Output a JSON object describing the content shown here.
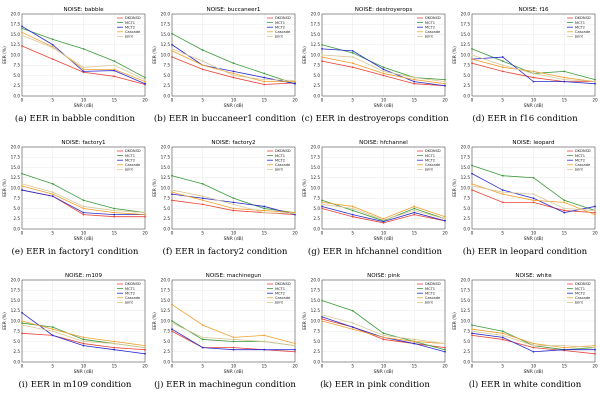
{
  "series_meta": [
    {
      "name": "DKDNSD",
      "color": "#e8443a"
    },
    {
      "name": "MCT1",
      "color": "#3a9a3a"
    },
    {
      "name": "MCT2",
      "color": "#2a2ad0"
    },
    {
      "name": "Cascade",
      "color": "#f0a030"
    },
    {
      "name": "Joint",
      "color": "#d8c898"
    }
  ],
  "chart_data": [
    {
      "type": "line",
      "title": "NOISE: babble",
      "caption": "(a) EER in babble condition",
      "xlabel": "SNR (dB)",
      "ylabel": "EER (%)",
      "x": [
        0,
        5,
        10,
        15,
        20
      ],
      "xticks": [
        0,
        5,
        10,
        15,
        20
      ],
      "yticks": [
        0.0,
        2.5,
        5.0,
        7.5,
        10.0,
        12.5,
        15.0,
        17.5,
        20.0
      ],
      "ylim": [
        0,
        20
      ],
      "series": [
        {
          "name": "DKDNSD",
          "values": [
            12.2,
            9.0,
            5.8,
            4.8,
            2.8
          ]
        },
        {
          "name": "MCT1",
          "values": [
            16.5,
            13.8,
            11.5,
            8.5,
            4.5
          ]
        },
        {
          "name": "MCT2",
          "values": [
            17.0,
            12.5,
            6.0,
            6.2,
            3.0
          ]
        },
        {
          "name": "Cascade",
          "values": [
            15.5,
            12.0,
            6.5,
            6.5,
            3.5
          ]
        },
        {
          "name": "Joint",
          "values": [
            14.8,
            11.8,
            7.0,
            7.5,
            4.0
          ]
        }
      ]
    },
    {
      "type": "line",
      "title": "NOISE: buccaneer1",
      "caption": "(b) EER in buccaneer1 condition",
      "xlabel": "SNR (dB)",
      "ylabel": "EER (%)",
      "x": [
        0,
        5,
        10,
        15,
        20
      ],
      "xticks": [
        0,
        5,
        10,
        15,
        20
      ],
      "yticks": [
        0.0,
        2.5,
        5.0,
        7.5,
        10.0,
        12.5,
        15.0,
        17.5,
        20.0
      ],
      "ylim": [
        0,
        20
      ],
      "series": [
        {
          "name": "DKDNSD",
          "values": [
            9.5,
            6.5,
            4.5,
            2.8,
            3.2
          ]
        },
        {
          "name": "MCT1",
          "values": [
            15.2,
            11.2,
            8.0,
            5.5,
            3.0
          ]
        },
        {
          "name": "MCT2",
          "values": [
            12.5,
            7.5,
            6.0,
            4.5,
            3.0
          ]
        },
        {
          "name": "Cascade",
          "values": [
            11.0,
            7.5,
            5.5,
            3.5,
            3.5
          ]
        },
        {
          "name": "Joint",
          "values": [
            11.5,
            8.5,
            5.0,
            4.0,
            3.8
          ]
        }
      ]
    },
    {
      "type": "line",
      "title": "NOISE: destroyerops",
      "caption": "(c) EER in destroyerops condition",
      "xlabel": "SNR (dB)",
      "ylabel": "EER (%)",
      "x": [
        0,
        5,
        10,
        15,
        20
      ],
      "xticks": [
        0,
        5,
        10,
        15,
        20
      ],
      "yticks": [
        0.0,
        2.5,
        5.0,
        7.5,
        10.0,
        12.5,
        15.0,
        17.5,
        20.0
      ],
      "ylim": [
        0,
        20
      ],
      "series": [
        {
          "name": "DKDNSD",
          "values": [
            8.5,
            7.0,
            5.0,
            3.0,
            2.5
          ]
        },
        {
          "name": "MCT1",
          "values": [
            12.5,
            10.5,
            7.0,
            4.5,
            4.0
          ]
        },
        {
          "name": "MCT2",
          "values": [
            11.5,
            11.0,
            6.5,
            3.5,
            2.5
          ]
        },
        {
          "name": "Cascade",
          "values": [
            9.5,
            8.0,
            5.5,
            4.0,
            3.0
          ]
        },
        {
          "name": "Joint",
          "values": [
            10.0,
            9.5,
            6.0,
            4.5,
            3.5
          ]
        }
      ]
    },
    {
      "type": "line",
      "title": "NOISE: f16",
      "caption": "(d) EER in f16 condition",
      "xlabel": "SNR (dB)",
      "ylabel": "EER (%)",
      "x": [
        0,
        5,
        10,
        15,
        20
      ],
      "xticks": [
        0,
        5,
        10,
        15,
        20
      ],
      "yticks": [
        0.0,
        2.5,
        5.0,
        7.5,
        10.0,
        12.5,
        15.0,
        17.5,
        20.0
      ],
      "ylim": [
        0,
        20
      ],
      "series": [
        {
          "name": "DKDNSD",
          "values": [
            8.0,
            6.0,
            4.5,
            3.5,
            3.5
          ]
        },
        {
          "name": "MCT1",
          "values": [
            11.5,
            8.5,
            5.5,
            6.0,
            4.0
          ]
        },
        {
          "name": "MCT2",
          "values": [
            9.0,
            9.5,
            3.5,
            3.5,
            3.0
          ]
        },
        {
          "name": "Cascade",
          "values": [
            9.0,
            7.0,
            6.0,
            4.5,
            3.5
          ]
        },
        {
          "name": "Joint",
          "values": [
            10.0,
            7.5,
            5.5,
            4.0,
            3.5
          ]
        }
      ]
    },
    {
      "type": "line",
      "title": "NOISE: factory1",
      "caption": "(e) EER in factory1 condition",
      "xlabel": "SNR (dB)",
      "ylabel": "EER (%)",
      "x": [
        0,
        5,
        10,
        15,
        20
      ],
      "xticks": [
        0,
        5,
        10,
        15,
        20
      ],
      "yticks": [
        0.0,
        2.5,
        5.0,
        7.5,
        10.0,
        12.5,
        15.0,
        17.5,
        20.0
      ],
      "ylim": [
        0,
        20
      ],
      "series": [
        {
          "name": "DKDNSD",
          "values": [
            9.5,
            8.0,
            3.5,
            3.0,
            3.0
          ]
        },
        {
          "name": "MCT1",
          "values": [
            13.5,
            11.0,
            7.0,
            5.0,
            4.0
          ]
        },
        {
          "name": "MCT2",
          "values": [
            9.5,
            8.0,
            4.0,
            3.5,
            3.5
          ]
        },
        {
          "name": "Cascade",
          "values": [
            10.5,
            8.5,
            5.0,
            4.0,
            3.5
          ]
        },
        {
          "name": "Joint",
          "values": [
            11.0,
            9.0,
            5.5,
            4.5,
            4.0
          ]
        }
      ]
    },
    {
      "type": "line",
      "title": "NOISE: factory2",
      "caption": "(f) EER in factory2 condition",
      "xlabel": "SNR (dB)",
      "ylabel": "EER (%)",
      "x": [
        0,
        5,
        10,
        15,
        20
      ],
      "xticks": [
        0,
        5,
        10,
        15,
        20
      ],
      "yticks": [
        0.0,
        2.5,
        5.0,
        7.5,
        10.0,
        12.5,
        15.0,
        17.5,
        20.0
      ],
      "ylim": [
        0,
        20
      ],
      "series": [
        {
          "name": "DKDNSD",
          "values": [
            7.0,
            6.0,
            4.5,
            4.0,
            3.5
          ]
        },
        {
          "name": "MCT1",
          "values": [
            13.0,
            11.0,
            7.5,
            5.0,
            4.0
          ]
        },
        {
          "name": "MCT2",
          "values": [
            8.5,
            7.5,
            6.5,
            5.5,
            3.5
          ]
        },
        {
          "name": "Cascade",
          "values": [
            9.0,
            7.0,
            5.0,
            4.5,
            4.0
          ]
        },
        {
          "name": "Joint",
          "values": [
            9.5,
            8.0,
            6.0,
            4.0,
            3.8
          ]
        }
      ]
    },
    {
      "type": "line",
      "title": "NOISE: hfchannel",
      "caption": "(g) EER in hfchannel condition",
      "xlabel": "SNR (dB)",
      "ylabel": "EER (%)",
      "x": [
        0,
        5,
        10,
        15,
        20
      ],
      "xticks": [
        0,
        5,
        10,
        15,
        20
      ],
      "yticks": [
        0.0,
        2.5,
        5.0,
        7.5,
        10.0,
        12.5,
        15.0,
        17.5,
        20.0
      ],
      "ylim": [
        0,
        20
      ],
      "series": [
        {
          "name": "DKDNSD",
          "values": [
            5.0,
            3.0,
            1.5,
            3.5,
            2.0
          ]
        },
        {
          "name": "MCT1",
          "values": [
            7.0,
            4.5,
            2.0,
            5.0,
            2.5
          ]
        },
        {
          "name": "MCT2",
          "values": [
            5.5,
            3.5,
            1.8,
            4.0,
            2.0
          ]
        },
        {
          "name": "Cascade",
          "values": [
            6.5,
            5.5,
            2.5,
            5.5,
            3.0
          ]
        },
        {
          "name": "Joint",
          "values": [
            6.0,
            5.0,
            2.2,
            4.5,
            2.5
          ]
        }
      ]
    },
    {
      "type": "line",
      "title": "NOISE: leopard",
      "caption": "(h) EER in leopard condition",
      "xlabel": "SNR (dB)",
      "ylabel": "EER (%)",
      "x": [
        0,
        5,
        10,
        15,
        20
      ],
      "xticks": [
        0,
        5,
        10,
        15,
        20
      ],
      "yticks": [
        0.0,
        2.5,
        5.0,
        7.5,
        10.0,
        12.5,
        15.0,
        17.5,
        20.0
      ],
      "ylim": [
        0,
        20
      ],
      "series": [
        {
          "name": "DKDNSD",
          "values": [
            9.5,
            6.5,
            6.5,
            4.5,
            4.0
          ]
        },
        {
          "name": "MCT1",
          "values": [
            15.5,
            13.0,
            12.5,
            7.0,
            4.5
          ]
        },
        {
          "name": "MCT2",
          "values": [
            13.5,
            9.5,
            7.5,
            4.0,
            5.5
          ]
        },
        {
          "name": "Cascade",
          "values": [
            11.0,
            8.5,
            7.0,
            6.5,
            3.5
          ]
        },
        {
          "name": "Joint",
          "values": [
            10.5,
            9.0,
            8.5,
            5.0,
            4.5
          ]
        }
      ]
    },
    {
      "type": "line",
      "title": "NOISE: m109",
      "caption": "(i) EER in m109 condition",
      "xlabel": "SNR (dB)",
      "ylabel": "EER (%)",
      "x": [
        0,
        5,
        10,
        15,
        20
      ],
      "xticks": [
        0,
        5,
        10,
        15,
        20
      ],
      "yticks": [
        0.0,
        2.5,
        5.0,
        7.5,
        10.0,
        12.5,
        15.0,
        17.5,
        20.0
      ],
      "ylim": [
        0,
        20
      ],
      "series": [
        {
          "name": "DKDNSD",
          "values": [
            7.0,
            6.5,
            4.5,
            3.5,
            3.0
          ]
        },
        {
          "name": "MCT1",
          "values": [
            9.5,
            8.5,
            5.5,
            4.5,
            3.5
          ]
        },
        {
          "name": "MCT2",
          "values": [
            12.0,
            6.5,
            4.0,
            3.0,
            2.0
          ]
        },
        {
          "name": "Cascade",
          "values": [
            10.0,
            8.0,
            6.0,
            5.0,
            4.0
          ]
        },
        {
          "name": "Joint",
          "values": [
            9.0,
            7.5,
            5.0,
            4.5,
            3.5
          ]
        }
      ]
    },
    {
      "type": "line",
      "title": "NOISE: machinegun",
      "caption": "(j) EER in machinegun condition",
      "xlabel": "SNR (dB)",
      "ylabel": "EER (%)",
      "x": [
        0,
        5,
        10,
        15,
        20
      ],
      "xticks": [
        0,
        5,
        10,
        15,
        20
      ],
      "yticks": [
        0.0,
        2.5,
        5.0,
        7.5,
        10.0,
        12.5,
        15.0,
        17.5,
        20.0
      ],
      "ylim": [
        0,
        20
      ],
      "series": [
        {
          "name": "DKDNSD",
          "values": [
            7.5,
            3.5,
            3.5,
            3.0,
            2.5
          ]
        },
        {
          "name": "MCT1",
          "values": [
            10.0,
            5.5,
            5.0,
            5.0,
            4.0
          ]
        },
        {
          "name": "MCT2",
          "values": [
            8.0,
            3.5,
            3.0,
            3.0,
            3.0
          ]
        },
        {
          "name": "Cascade",
          "values": [
            14.0,
            9.0,
            6.0,
            6.5,
            4.5
          ]
        },
        {
          "name": "Joint",
          "values": [
            9.5,
            6.0,
            5.5,
            5.0,
            4.0
          ]
        }
      ]
    },
    {
      "type": "line",
      "title": "NOISE: pink",
      "caption": "(k) EER in pink condition",
      "xlabel": "SNR (dB)",
      "ylabel": "EER (%)",
      "x": [
        0,
        5,
        10,
        15,
        20
      ],
      "xticks": [
        0,
        5,
        10,
        15,
        20
      ],
      "yticks": [
        0.0,
        2.5,
        5.0,
        7.5,
        10.0,
        12.5,
        15.0,
        17.5,
        20.0
      ],
      "ylim": [
        0,
        20
      ],
      "series": [
        {
          "name": "DKDNSD",
          "values": [
            10.5,
            8.5,
            5.5,
            4.5,
            3.5
          ]
        },
        {
          "name": "MCT1",
          "values": [
            15.0,
            12.5,
            7.0,
            5.0,
            3.0
          ]
        },
        {
          "name": "MCT2",
          "values": [
            11.0,
            8.5,
            6.0,
            4.5,
            2.5
          ]
        },
        {
          "name": "Cascade",
          "values": [
            10.0,
            8.0,
            6.0,
            5.0,
            4.5
          ]
        },
        {
          "name": "Joint",
          "values": [
            11.5,
            9.5,
            6.5,
            5.5,
            4.5
          ]
        }
      ]
    },
    {
      "type": "line",
      "title": "NOISE: white",
      "caption": "(l) EER in white condition",
      "xlabel": "SNR (dB)",
      "ylabel": "EER (%)",
      "x": [
        0,
        5,
        10,
        15,
        20
      ],
      "xticks": [
        0,
        5,
        10,
        15,
        20
      ],
      "yticks": [
        0.0,
        2.5,
        5.0,
        7.5,
        10.0,
        12.5,
        15.0,
        17.5,
        20.0
      ],
      "ylim": [
        0,
        20
      ],
      "series": [
        {
          "name": "DKDNSD",
          "values": [
            6.5,
            5.5,
            3.5,
            2.8,
            2.0
          ]
        },
        {
          "name": "MCT1",
          "values": [
            9.0,
            7.5,
            4.0,
            3.0,
            3.5
          ]
        },
        {
          "name": "MCT2",
          "values": [
            7.0,
            6.0,
            2.5,
            3.0,
            3.0
          ]
        },
        {
          "name": "Cascade",
          "values": [
            8.0,
            7.0,
            4.5,
            3.5,
            4.0
          ]
        },
        {
          "name": "Joint",
          "values": [
            7.5,
            6.5,
            4.0,
            4.0,
            3.5
          ]
        }
      ]
    }
  ]
}
